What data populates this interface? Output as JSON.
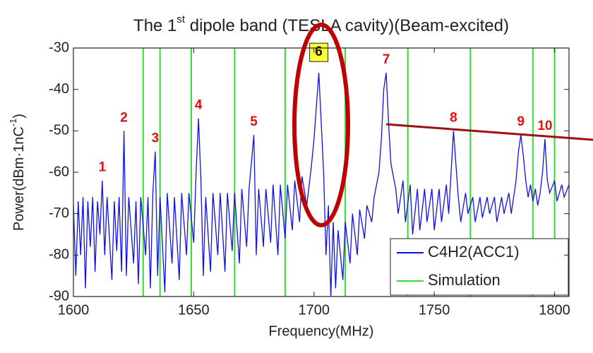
{
  "chart_data": {
    "type": "line",
    "title": {
      "text": "The 1",
      "sup": "st",
      "rest": " dipole band (TESLA cavity)(Beam-excited)"
    },
    "x_label": "Frequency(MHz)",
    "y_label": {
      "text": "Power(dBm·1nC",
      "sup": "-1",
      "rest": ")"
    },
    "xlim": [
      1600,
      1806
    ],
    "ylim": [
      -90,
      -30
    ],
    "xticks": [
      1600,
      1650,
      1700,
      1750,
      1800
    ],
    "yticks": [
      -30,
      -40,
      -50,
      -60,
      -70,
      -80,
      -90
    ],
    "grid": false,
    "legend": "lower right",
    "series": [
      {
        "name": "C4H2(ACC1)",
        "color": "#1010e0",
        "x": [
          1600,
          1601,
          1602,
          1603,
          1604,
          1605,
          1606,
          1607,
          1608,
          1609,
          1610,
          1611,
          1612,
          1613,
          1614,
          1616,
          1617,
          1618,
          1619,
          1620,
          1621,
          1622,
          1623,
          1625,
          1626,
          1627,
          1628,
          1630,
          1631,
          1632,
          1633,
          1634,
          1635,
          1636,
          1638,
          1639,
          1641,
          1642,
          1644,
          1645,
          1647,
          1648,
          1650,
          1651,
          1652,
          1653,
          1654,
          1655,
          1657,
          1658,
          1660,
          1661,
          1663,
          1664,
          1666,
          1667,
          1669,
          1670,
          1672,
          1673,
          1675,
          1676,
          1677,
          1679,
          1680,
          1682,
          1683,
          1685,
          1686,
          1688,
          1689,
          1691,
          1692,
          1694,
          1695,
          1697,
          1699,
          1700,
          1701,
          1702,
          1703,
          1704,
          1705,
          1706,
          1707,
          1708,
          1709,
          1710,
          1712,
          1713,
          1715,
          1716,
          1718,
          1719,
          1721,
          1722,
          1724,
          1725,
          1727,
          1728,
          1729,
          1730,
          1731,
          1732,
          1734,
          1735,
          1737,
          1738,
          1740,
          1741,
          1743,
          1744,
          1746,
          1747,
          1749,
          1750,
          1752,
          1753,
          1755,
          1756,
          1757,
          1758,
          1759,
          1760,
          1761,
          1763,
          1764,
          1766,
          1767,
          1769,
          1770,
          1772,
          1773,
          1775,
          1776,
          1778,
          1779,
          1781,
          1782,
          1784,
          1785,
          1786,
          1787,
          1788,
          1789,
          1790,
          1791,
          1792,
          1793,
          1794,
          1795,
          1796,
          1797,
          1798,
          1800,
          1801,
          1803,
          1804,
          1806
        ],
        "values": [
          -68,
          -85,
          -67,
          -80,
          -66,
          -88,
          -67,
          -78,
          -66,
          -84,
          -67,
          -75,
          -62,
          -80,
          -66,
          -86,
          -67,
          -79,
          -66,
          -84,
          -50,
          -85,
          -66,
          -82,
          -67,
          -87,
          -66,
          -80,
          -66,
          -88,
          -65,
          -55,
          -85,
          -66,
          -89,
          -65,
          -82,
          -66,
          -86,
          -65,
          -80,
          -65,
          -77,
          -60,
          -47,
          -62,
          -85,
          -66,
          -84,
          -65,
          -80,
          -65,
          -84,
          -65,
          -79,
          -65,
          -82,
          -64,
          -78,
          -64,
          -51,
          -80,
          -64,
          -78,
          -64,
          -77,
          -63,
          -80,
          -63,
          -76,
          -63,
          -74,
          -62,
          -72,
          -61,
          -68,
          -58,
          -52,
          -44,
          -36,
          -48,
          -60,
          -80,
          -68,
          -90,
          -72,
          -88,
          -74,
          -86,
          -72,
          -82,
          -70,
          -80,
          -69,
          -76,
          -68,
          -72,
          -66,
          -60,
          -52,
          -40,
          -36,
          -48,
          -58,
          -64,
          -70,
          -62,
          -72,
          -63,
          -75,
          -64,
          -74,
          -64,
          -72,
          -64,
          -74,
          -64,
          -72,
          -63,
          -70,
          -60,
          -50,
          -58,
          -66,
          -72,
          -65,
          -70,
          -66,
          -72,
          -66,
          -71,
          -66,
          -70,
          -66,
          -72,
          -66,
          -70,
          -65,
          -70,
          -62,
          -55,
          -51,
          -56,
          -62,
          -66,
          -63,
          -67,
          -64,
          -68,
          -65,
          -60,
          -52,
          -62,
          -65,
          -62,
          -67,
          -63,
          -66,
          -63
        ]
      },
      {
        "name": "Simulation",
        "color": "#33dd33",
        "x": [
          1629,
          1636,
          1649,
          1667,
          1688,
          1713,
          1739,
          1765,
          1791,
          1800
        ]
      }
    ],
    "annotations": [
      {
        "text": "1",
        "x": 1612,
        "y": -62
      },
      {
        "text": "2",
        "x": 1621,
        "y": -50
      },
      {
        "text": "3",
        "x": 1634,
        "y": -55
      },
      {
        "text": "4",
        "x": 1652,
        "y": -47
      },
      {
        "text": "5",
        "x": 1675,
        "y": -51
      },
      {
        "text": "6",
        "x": 1702,
        "y": -36,
        "boxed": true
      },
      {
        "text": "7",
        "x": 1730,
        "y": -36
      },
      {
        "text": "8",
        "x": 1758,
        "y": -50
      },
      {
        "text": "9",
        "x": 1786,
        "y": -51
      },
      {
        "text": "10",
        "x": 1796,
        "y": -52
      }
    ]
  }
}
